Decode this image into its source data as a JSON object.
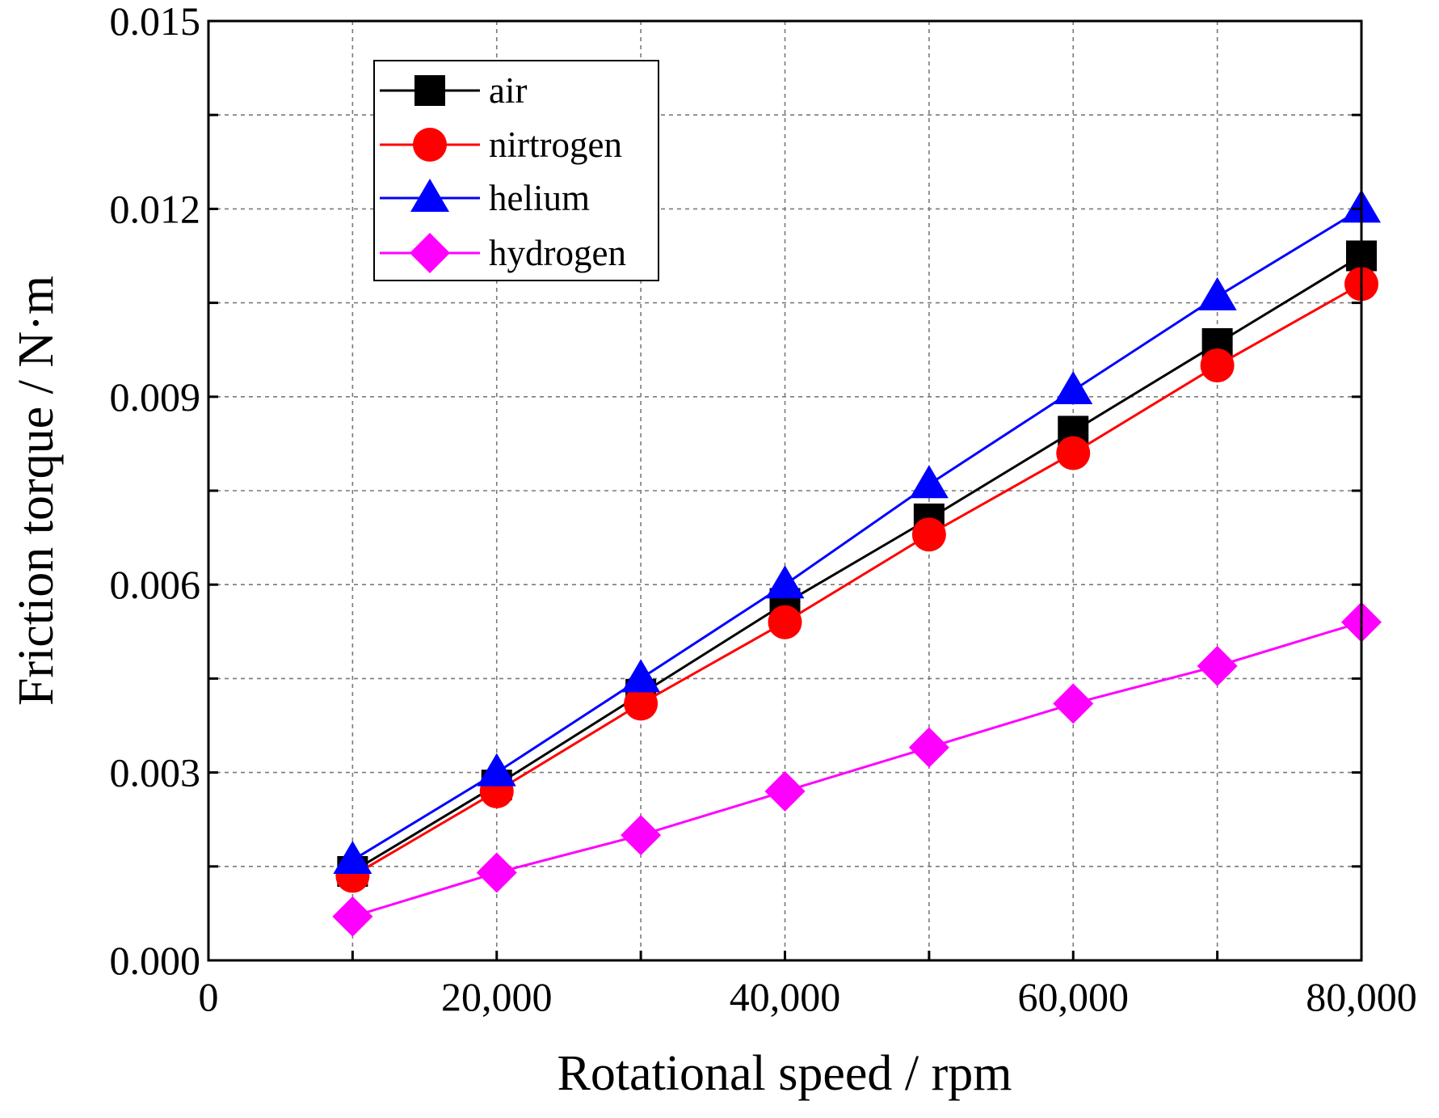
{
  "chart_data": {
    "type": "line",
    "title": "",
    "xlabel": "Rotational speed / rpm",
    "ylabel": "Friction torque / N·m",
    "xlim": [
      0,
      80000
    ],
    "ylim": [
      0,
      0.015
    ],
    "xticks": [
      0,
      20000,
      40000,
      60000,
      80000
    ],
    "xtick_labels": [
      "0",
      "20,000",
      "40,000",
      "60,000",
      "80,000"
    ],
    "yticks": [
      0,
      0.003,
      0.006,
      0.009,
      0.012,
      0.015
    ],
    "ytick_labels": [
      "0.000",
      "0.003",
      "0.006",
      "0.009",
      "0.012",
      "0.015"
    ],
    "grid": true,
    "legend_position": "top-left",
    "x": [
      10000,
      20000,
      30000,
      40000,
      50000,
      60000,
      70000,
      80000
    ],
    "series": [
      {
        "name": "air",
        "color": "#000000",
        "marker": "square",
        "values": [
          0.00142,
          0.0028,
          0.00425,
          0.0057,
          0.00705,
          0.00845,
          0.00985,
          0.01125
        ]
      },
      {
        "name": "nirtrogen",
        "color": "#ff0000",
        "marker": "circle",
        "values": [
          0.00135,
          0.0027,
          0.0041,
          0.0054,
          0.0068,
          0.0081,
          0.0095,
          0.0108
        ]
      },
      {
        "name": "helium",
        "color": "#0000ff",
        "marker": "triangle",
        "values": [
          0.0016,
          0.003,
          0.0045,
          0.006,
          0.0076,
          0.0091,
          0.0106,
          0.012
        ]
      },
      {
        "name": "hydrogen",
        "color": "#ff00ff",
        "marker": "diamond",
        "values": [
          0.0007,
          0.0014,
          0.002,
          0.0027,
          0.0034,
          0.0041,
          0.0047,
          0.0054
        ]
      }
    ]
  }
}
